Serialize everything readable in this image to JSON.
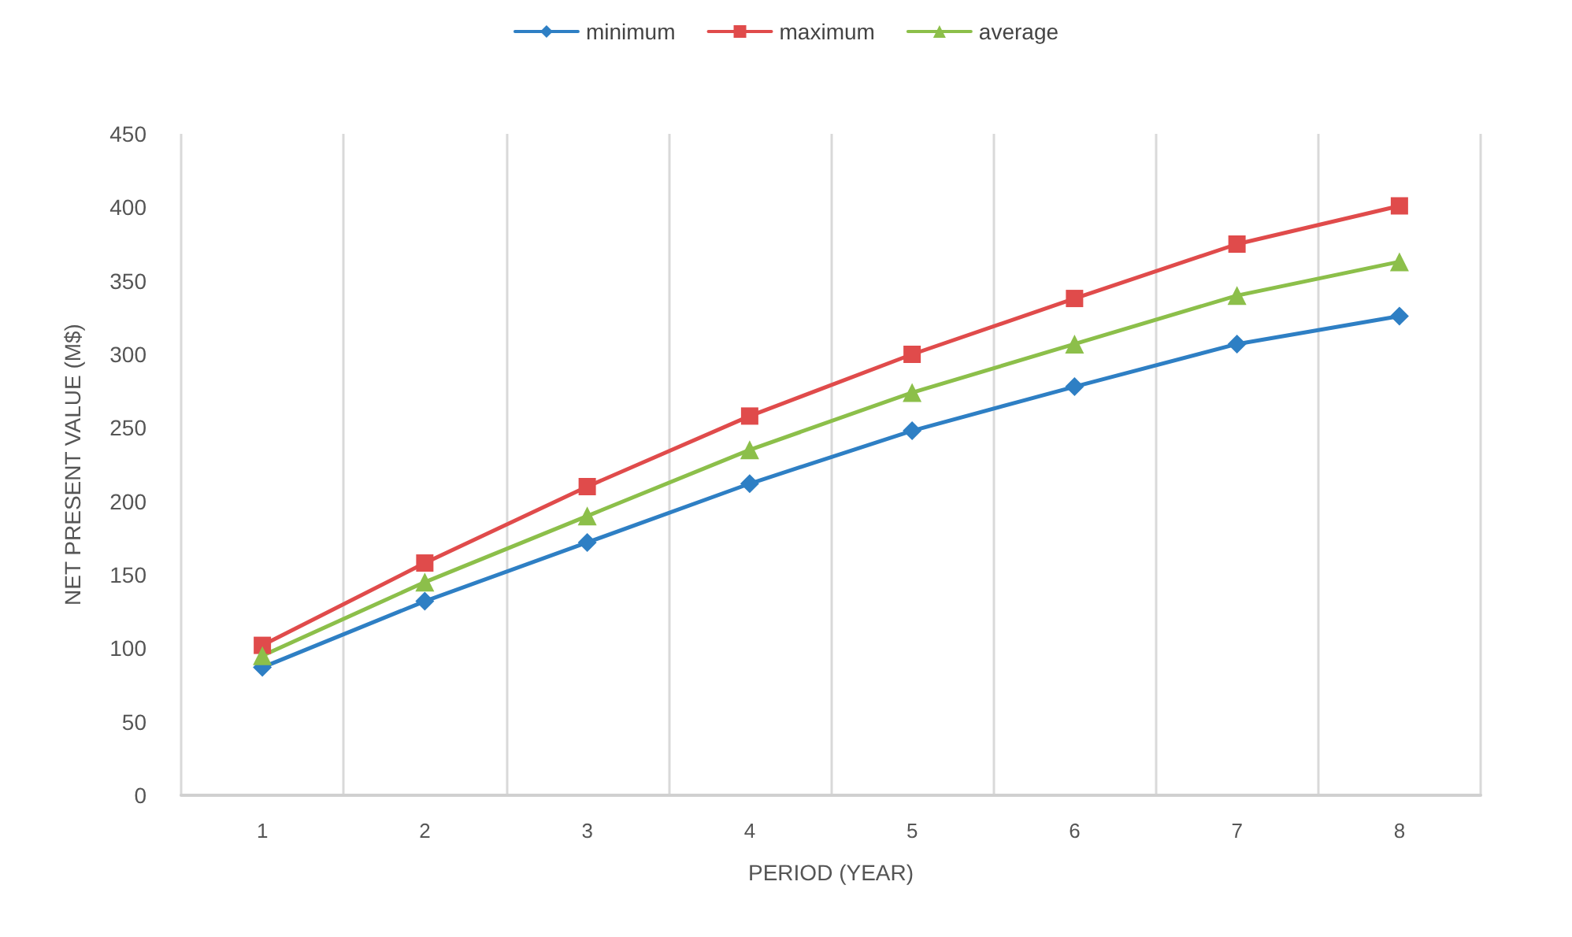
{
  "chart_data": {
    "type": "line",
    "xlabel": "PERIOD (YEAR)",
    "ylabel": "NET PRESENT VALUE (M$)",
    "categories": [
      "1",
      "2",
      "3",
      "4",
      "5",
      "6",
      "7",
      "8"
    ],
    "series": [
      {
        "name": "minimum",
        "color": "#2e7fc4",
        "marker": "diamond",
        "values": [
          87,
          132,
          172,
          212,
          248,
          278,
          307,
          326
        ]
      },
      {
        "name": "maximum",
        "color": "#e04b4b",
        "marker": "square",
        "values": [
          102,
          158,
          210,
          258,
          300,
          338,
          375,
          401
        ]
      },
      {
        "name": "average",
        "color": "#8cbf4a",
        "marker": "triangle",
        "values": [
          95,
          145,
          190,
          235,
          274,
          307,
          340,
          363
        ]
      }
    ],
    "ylim": [
      0,
      450
    ],
    "yticks": [
      0,
      50,
      100,
      150,
      200,
      250,
      300,
      350,
      400,
      450
    ],
    "grid": "x",
    "legend": "top",
    "line_style": "solid"
  }
}
